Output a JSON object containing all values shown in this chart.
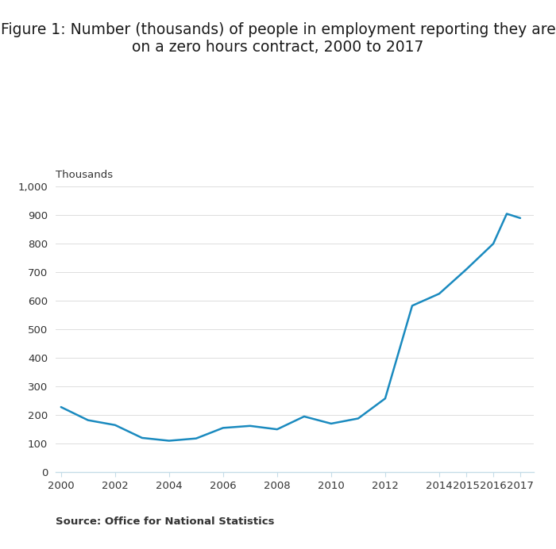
{
  "title_line1": "Figure 1: Number (thousands) of people in employment reporting they are",
  "title_line2": "on a zero hours contract, 2000 to 2017",
  "ylabel_annotation": "Thousands",
  "source": "Source: Office for National Statistics",
  "line_color": "#1a8abf",
  "background_color": "#ffffff",
  "years": [
    2000,
    2001,
    2002,
    2003,
    2004,
    2005,
    2006,
    2007,
    2008,
    2009,
    2010,
    2011,
    2012,
    2013,
    2014,
    2015,
    2016,
    2016.5,
    2017
  ],
  "values": [
    228,
    182,
    165,
    120,
    110,
    118,
    155,
    162,
    150,
    195,
    170,
    188,
    258,
    583,
    625,
    710,
    800,
    905,
    890
  ],
  "ylim": [
    0,
    1000
  ],
  "xlim": [
    1999.8,
    2017.5
  ],
  "yticks": [
    0,
    100,
    200,
    300,
    400,
    500,
    600,
    700,
    800,
    900,
    1000
  ],
  "xtick_values": [
    2000,
    2002,
    2004,
    2006,
    2008,
    2010,
    2012,
    2014,
    2015,
    2016,
    2017
  ],
  "xtick_labels": [
    "2000",
    "2002",
    "2004",
    "2006",
    "2008",
    "2010",
    "2012",
    "2014",
    "2015",
    "2016",
    "2017"
  ],
  "title_fontsize": 13.5,
  "annotation_fontsize": 9.5,
  "source_fontsize": 9.5,
  "tick_fontsize": 9.5,
  "line_width": 1.8,
  "grid_color": "#d8d8d8",
  "spine_color": "#c5dce8",
  "tick_color": "#c5dce8",
  "text_color": "#333333"
}
